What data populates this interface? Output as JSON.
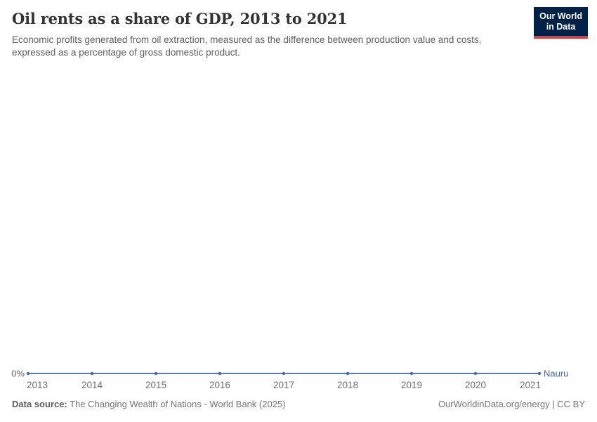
{
  "header": {
    "title": "Oil rents as a share of GDP, 2013 to 2021",
    "subtitle": "Economic profits generated from oil extraction, measured as the difference between production value and costs, expressed as a percentage of gross domestic product.",
    "logo": {
      "line1": "Our World",
      "line2": "in Data",
      "bg_color": "#002147",
      "accent_color": "#e0403d"
    }
  },
  "chart_data": {
    "type": "line",
    "title": "Oil rents as a share of GDP, 2013 to 2021",
    "x": [
      2013,
      2014,
      2015,
      2016,
      2017,
      2018,
      2019,
      2020,
      2021
    ],
    "x_ticks": [
      "2013",
      "2014",
      "2015",
      "2016",
      "2017",
      "2018",
      "2019",
      "2020",
      "2021"
    ],
    "y_tick_labels": [
      "0%"
    ],
    "ylim": [
      0,
      1
    ],
    "grid": false,
    "legend_position": "right-of-line-end",
    "value_suffix": "%",
    "series": [
      {
        "name": "Nauru",
        "color": "#4268b3",
        "values": [
          0,
          0,
          0,
          0,
          0,
          0,
          0,
          0,
          0
        ]
      }
    ],
    "axis_text_color": "#6e6e73",
    "ytick_text_color": "#666666"
  },
  "footer": {
    "datasource_label": "Data source:",
    "datasource_value": "The Changing Wealth of Nations - World Bank (2025)",
    "rights": "OurWorldinData.org/energy | CC BY"
  }
}
